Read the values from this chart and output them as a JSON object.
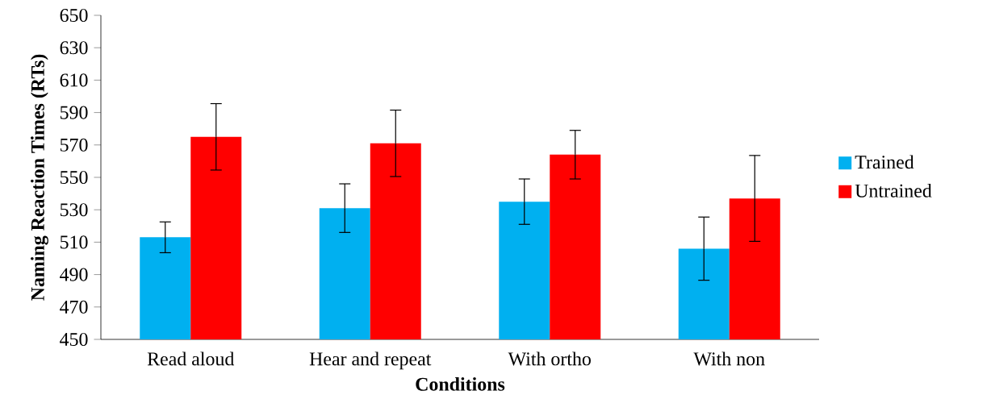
{
  "chart_data": {
    "type": "bar",
    "xlabel": "Conditions",
    "ylabel": "Naming Reaction Times (RTs)",
    "categories": [
      "Read aloud",
      "Hear and repeat",
      "With ortho",
      "With non"
    ],
    "series": [
      {
        "name": "Trained",
        "color": "#00b0f0",
        "values": [
          513,
          531,
          535,
          506
        ],
        "errors": [
          9.5,
          15,
          14,
          19.5
        ]
      },
      {
        "name": "Untrained",
        "color": "#ff0000",
        "values": [
          575,
          571,
          564,
          537
        ],
        "errors": [
          20.5,
          20.5,
          15,
          26.5
        ]
      }
    ],
    "ylim": [
      450,
      650
    ],
    "yticks": [
      450,
      470,
      490,
      510,
      530,
      550,
      570,
      590,
      610,
      630,
      650
    ],
    "legend": "right",
    "grid": false
  }
}
